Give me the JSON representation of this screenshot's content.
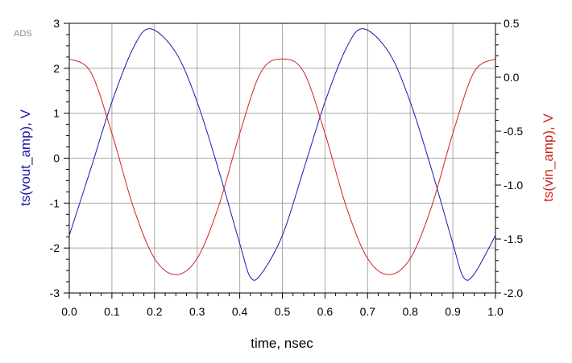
{
  "watermark": "ADS",
  "chart_data": {
    "type": "line",
    "title": "",
    "xlabel": "time, nsec",
    "ylabel_left": "ts(vout_amp), V",
    "ylabel_right": "ts(vin_amp), V",
    "xlim": [
      0.0,
      1.0
    ],
    "ylim_left": [
      -3,
      3
    ],
    "ylim_right": [
      -2.0,
      0.5
    ],
    "grid": true,
    "legend": "none",
    "x_ticks": [
      "0.0",
      "0.1",
      "0.2",
      "0.3",
      "0.4",
      "0.5",
      "0.6",
      "0.7",
      "0.8",
      "0.9",
      "1.0"
    ],
    "y_left_ticks": [
      "3",
      "2",
      "1",
      "0",
      "-1",
      "-2",
      "-3"
    ],
    "y_right_ticks": [
      "0.5",
      "0.0",
      "-0.5",
      "-1.0",
      "-1.5",
      "-2.0"
    ],
    "series": [
      {
        "axis": "left",
        "color": "#1a1aa8",
        "x": [
          0.0,
          0.05,
          0.1,
          0.15,
          0.19,
          0.25,
          0.3,
          0.35,
          0.4,
          0.425,
          0.45,
          0.5,
          0.55,
          0.6,
          0.65,
          0.69,
          0.75,
          0.8,
          0.85,
          0.9,
          0.925,
          0.95,
          1.0
        ],
        "values": [
          -1.72,
          -0.25,
          1.25,
          2.45,
          2.88,
          2.35,
          1.25,
          -0.25,
          -1.9,
          -2.65,
          -2.58,
          -1.72,
          -0.25,
          1.25,
          2.45,
          2.88,
          2.35,
          1.25,
          -0.25,
          -1.9,
          -2.65,
          -2.58,
          -1.72
        ]
      },
      {
        "axis": "right",
        "color": "#d42020",
        "x": [
          0.0,
          0.05,
          0.1,
          0.15,
          0.2,
          0.25,
          0.3,
          0.35,
          0.4,
          0.45,
          0.5,
          0.55,
          0.6,
          0.65,
          0.7,
          0.75,
          0.8,
          0.85,
          0.9,
          0.95,
          1.0
        ],
        "values": [
          0.17,
          0.05,
          -0.52,
          -1.2,
          -1.68,
          -1.83,
          -1.68,
          -1.2,
          -0.52,
          0.05,
          0.17,
          0.05,
          -0.52,
          -1.2,
          -1.68,
          -1.83,
          -1.68,
          -1.2,
          -0.52,
          0.05,
          0.17
        ]
      }
    ]
  }
}
